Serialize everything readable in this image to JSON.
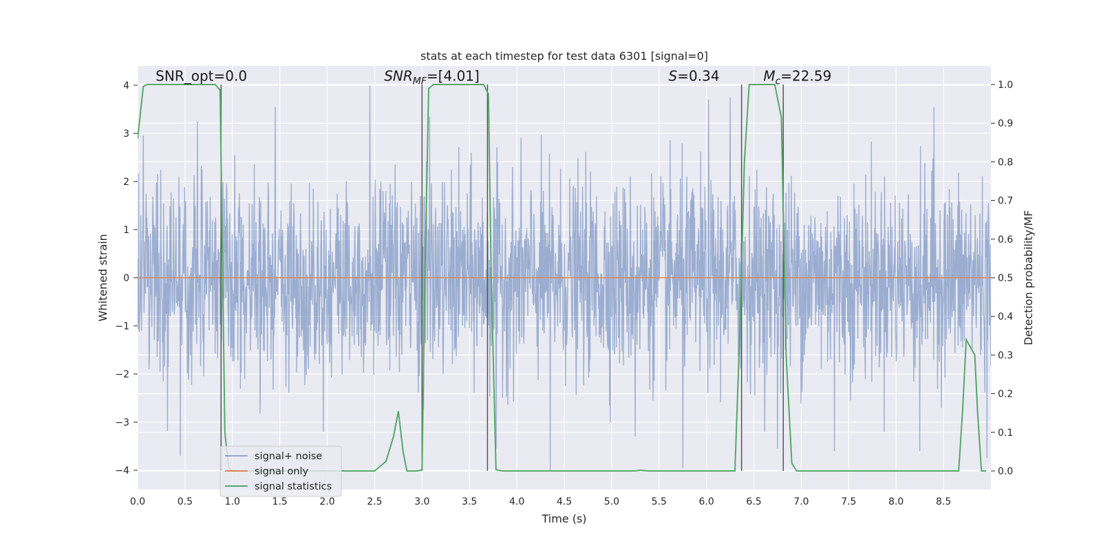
{
  "chart_data": {
    "type": "line",
    "title": "stats at each timestep for test data 6301 [signal=0]",
    "xlabel": "Time (s)",
    "ylabel": "Whitened strain",
    "y2label": "Detection probability/MF",
    "xlim": [
      0.0,
      9.0
    ],
    "ylim": [
      -4.4,
      4.4
    ],
    "y2lim": [
      -0.048,
      1.048
    ],
    "x_ticks": [
      0.0,
      0.5,
      1.0,
      1.5,
      2.0,
      2.5,
      3.0,
      3.5,
      4.0,
      4.5,
      5.0,
      5.5,
      6.0,
      6.5,
      7.0,
      7.5,
      8.0,
      8.5
    ],
    "x_tick_labels": [
      "0.0",
      "0.5",
      "1.0",
      "1.5",
      "2.0",
      "2.5",
      "3.0",
      "3.5",
      "4.0",
      "4.5",
      "5.0",
      "5.5",
      "6.0",
      "6.5",
      "7.0",
      "7.5",
      "8.0",
      "8.5"
    ],
    "y_ticks": [
      -4,
      -3,
      -2,
      -1,
      0,
      1,
      2,
      3,
      4
    ],
    "y_tick_labels": [
      "−4",
      "−3",
      "−2",
      "−1",
      "0",
      "1",
      "2",
      "3",
      "4"
    ],
    "y2_ticks": [
      0.0,
      0.1,
      0.2,
      0.3,
      0.4,
      0.5,
      0.6,
      0.7,
      0.8,
      0.9,
      1.0
    ],
    "y2_tick_labels": [
      "0.0",
      "0.1",
      "0.2",
      "0.3",
      "0.4",
      "0.5",
      "0.6",
      "0.7",
      "0.8",
      "0.9",
      "1.0"
    ],
    "grid": true,
    "legend_position": "lower-left",
    "series": [
      {
        "name": "signal+ noise",
        "axis": "left",
        "color": "#4c72b0",
        "style": "noise",
        "sigma": 1.0,
        "x_range": [
          0.0,
          9.0
        ],
        "peaks": [
          {
            "x": 0.45,
            "y": -3.7
          },
          {
            "x": 0.63,
            "y": 3.25
          },
          {
            "x": 1.45,
            "y": 3.55
          },
          {
            "x": 2.45,
            "y": 4.0
          },
          {
            "x": 3.08,
            "y": 3.35
          },
          {
            "x": 3.78,
            "y": -3.55
          },
          {
            "x": 4.35,
            "y": -4.0
          },
          {
            "x": 5.25,
            "y": -3.3
          },
          {
            "x": 5.75,
            "y": -3.95
          },
          {
            "x": 6.02,
            "y": 3.7
          },
          {
            "x": 6.25,
            "y": 3.75
          },
          {
            "x": 6.75,
            "y": -3.55
          },
          {
            "x": 7.35,
            "y": -3.6
          },
          {
            "x": 8.25,
            "y": -3.6
          },
          {
            "x": 8.4,
            "y": 3.55
          },
          {
            "x": 8.96,
            "y": -3.75
          }
        ]
      },
      {
        "name": "signal only",
        "axis": "left",
        "color": "#dd8452",
        "x": [
          0.0,
          9.0
        ],
        "y": [
          0.0,
          0.0
        ]
      },
      {
        "name": "signal statistics",
        "axis": "right",
        "color": "#55a868",
        "x": [
          0.0,
          0.06,
          0.1,
          0.2,
          0.82,
          0.87,
          0.92,
          0.96,
          1.0,
          2.5,
          2.62,
          2.7,
          2.75,
          2.8,
          2.84,
          2.95,
          3.0,
          3.03,
          3.07,
          3.12,
          3.65,
          3.7,
          3.73,
          3.78,
          3.85,
          5.25,
          5.3,
          5.38,
          6.3,
          6.35,
          6.4,
          6.45,
          6.72,
          6.79,
          6.84,
          6.9,
          6.95,
          8.66,
          8.7,
          8.74,
          8.83,
          8.86,
          8.9,
          8.95
        ],
        "y": [
          0.86,
          0.995,
          1.0,
          1.0,
          1.0,
          0.985,
          0.1,
          0.01,
          0.0,
          0.0,
          0.025,
          0.09,
          0.155,
          0.05,
          0.0,
          0.0,
          0.003,
          0.5,
          0.99,
          1.0,
          1.0,
          0.975,
          0.5,
          0.003,
          0.0,
          0.0,
          0.002,
          0.0,
          0.0,
          0.35,
          0.8,
          1.0,
          1.0,
          0.915,
          0.3,
          0.02,
          0.0,
          0.0,
          0.15,
          0.34,
          0.3,
          0.15,
          0.0,
          0.0
        ]
      }
    ],
    "vertical_lines": [
      0.88,
      3.0,
      3.69,
      6.37,
      6.81
    ],
    "annotations": [
      {
        "id": "snr-opt",
        "text": "SNR_opt=0.0",
        "x": 0.19,
        "y2": 1.01
      },
      {
        "id": "snr-mf",
        "text_main": "SNR",
        "text_sub": "MF",
        "text_value": "=[4.01]",
        "x": 2.6,
        "y2": 1.01
      },
      {
        "id": "s-stat",
        "text_main": "S",
        "text_value": "=0.34",
        "x": 5.6,
        "y2": 1.01
      },
      {
        "id": "m-c",
        "text_main": "M",
        "text_sub": "c",
        "text_value": "=22.59",
        "x": 6.6,
        "y2": 1.01
      }
    ]
  }
}
